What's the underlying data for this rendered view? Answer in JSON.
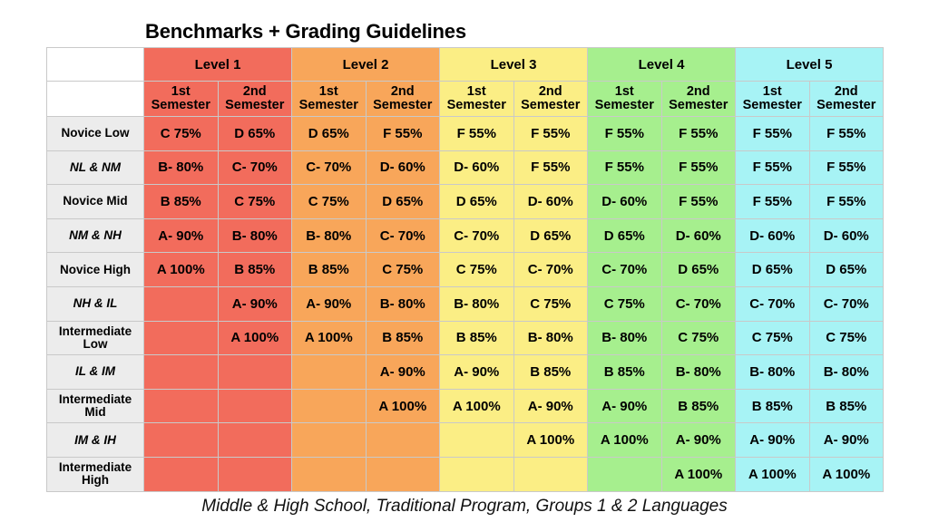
{
  "title": "Benchmarks + Grading Guidelines",
  "subtitle": "Middle & High School, Traditional Program, Groups 1 & 2 Languages",
  "colors": {
    "level1": "#f26c5c",
    "level2": "#f8a65a",
    "level3": "#fbee85",
    "level4": "#a6ef8e",
    "level5": "#a7f3f5",
    "row_label_bg": "#ececec"
  },
  "levels": [
    "Level 1",
    "Level 2",
    "Level 3",
    "Level 4",
    "Level 5"
  ],
  "semesters": [
    "1st Semester",
    "2nd Semester"
  ],
  "rows": [
    {
      "label": "Novice Low",
      "italic": false,
      "cells": [
        "C 75%",
        "D 65%",
        "D 65%",
        "F 55%",
        "F 55%",
        "F 55%",
        "F 55%",
        "F 55%",
        "F 55%",
        "F 55%"
      ]
    },
    {
      "label": "NL & NM",
      "italic": true,
      "cells": [
        "B- 80%",
        "C- 70%",
        "C- 70%",
        "D- 60%",
        "D- 60%",
        "F 55%",
        "F 55%",
        "F 55%",
        "F 55%",
        "F 55%"
      ]
    },
    {
      "label": "Novice Mid",
      "italic": false,
      "cells": [
        "B 85%",
        "C 75%",
        "C 75%",
        "D 65%",
        "D 65%",
        "D- 60%",
        "D- 60%",
        "F 55%",
        "F 55%",
        "F 55%"
      ]
    },
    {
      "label": "NM & NH",
      "italic": true,
      "cells": [
        "A- 90%",
        "B- 80%",
        "B- 80%",
        "C- 70%",
        "C- 70%",
        "D 65%",
        "D 65%",
        "D- 60%",
        "D- 60%",
        "D- 60%"
      ]
    },
    {
      "label": "Novice High",
      "italic": false,
      "cells": [
        "A 100%",
        "B 85%",
        "B 85%",
        "C 75%",
        "C 75%",
        "C- 70%",
        "C- 70%",
        "D 65%",
        "D 65%",
        "D 65%"
      ]
    },
    {
      "label": "NH & IL",
      "italic": true,
      "cells": [
        "",
        "A- 90%",
        "A- 90%",
        "B- 80%",
        "B- 80%",
        "C 75%",
        "C 75%",
        "C- 70%",
        "C- 70%",
        "C- 70%"
      ]
    },
    {
      "label": "Intermediate Low",
      "italic": false,
      "cells": [
        "",
        "A 100%",
        "A 100%",
        "B 85%",
        "B 85%",
        "B- 80%",
        "B- 80%",
        "C 75%",
        "C 75%",
        "C 75%"
      ]
    },
    {
      "label": "IL & IM",
      "italic": true,
      "cells": [
        "",
        "",
        "",
        "A- 90%",
        "A- 90%",
        "B 85%",
        "B 85%",
        "B- 80%",
        "B- 80%",
        "B- 80%"
      ]
    },
    {
      "label": "Intermediate Mid",
      "italic": false,
      "cells": [
        "",
        "",
        "",
        "A 100%",
        "A 100%",
        "A- 90%",
        "A- 90%",
        "B 85%",
        "B 85%",
        "B 85%"
      ]
    },
    {
      "label": "IM & IH",
      "italic": true,
      "cells": [
        "",
        "",
        "",
        "",
        "",
        "A 100%",
        "A 100%",
        "A- 90%",
        "A- 90%",
        "A- 90%"
      ]
    },
    {
      "label": "Intermediate High",
      "italic": false,
      "cells": [
        "",
        "",
        "",
        "",
        "",
        "",
        "",
        "A 100%",
        "A 100%",
        "A 100%"
      ]
    }
  ]
}
